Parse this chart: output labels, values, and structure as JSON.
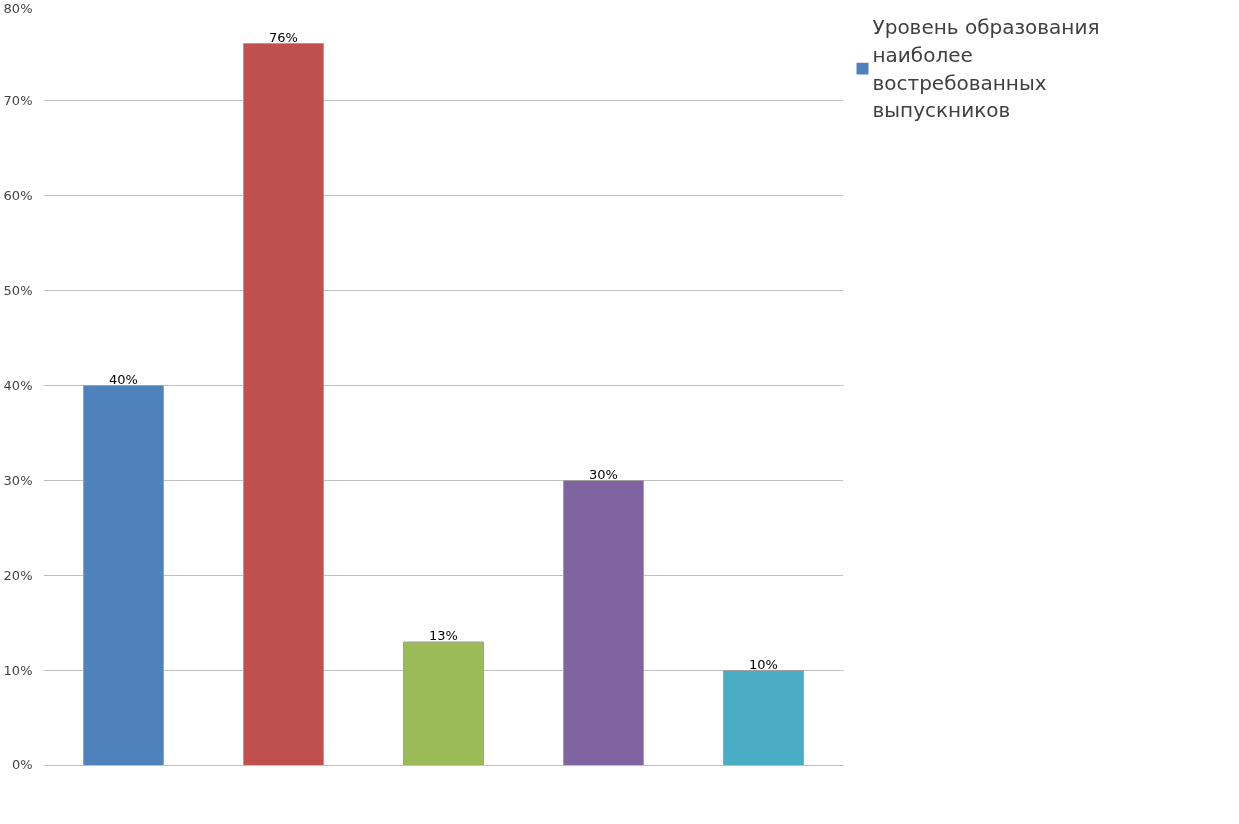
{
  "chart_data": {
    "type": "bar",
    "categories": [
      null,
      null,
      null,
      null,
      null
    ],
    "series": [
      {
        "name": "Уровень образования наиболее востребованных выпускников",
        "color": "#4f81bd",
        "colors": [
          "#4f81bd",
          "#c0504d",
          "#9bbb59",
          "#8064a2",
          "#4bacc6"
        ],
        "values": [
          40,
          76,
          13,
          30,
          10
        ],
        "value_labels": [
          "40%",
          "76%",
          "13%",
          "30%",
          "10%"
        ]
      }
    ],
    "ylim": [
      0,
      80
    ],
    "yticks": [
      {
        "value": 0,
        "label": "0%"
      },
      {
        "value": 10,
        "label": "10%"
      },
      {
        "value": 20,
        "label": "20%"
      },
      {
        "value": 30,
        "label": "30%"
      },
      {
        "value": 40,
        "label": "40%"
      },
      {
        "value": 50,
        "label": "50%"
      },
      {
        "value": 60,
        "label": "60%"
      },
      {
        "value": 70,
        "label": "70%"
      },
      {
        "value": 80,
        "label": "80%"
      }
    ],
    "grid": "y",
    "legend": "top right"
  }
}
